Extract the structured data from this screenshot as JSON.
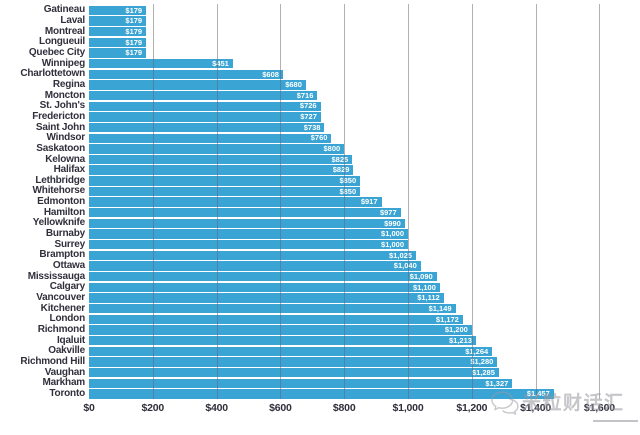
{
  "chart_data": {
    "type": "bar",
    "orientation": "horizontal",
    "title": "",
    "xlabel": "",
    "ylabel": "",
    "xlim": [
      0,
      1700
    ],
    "grid": true,
    "bar_color": "#3AA4D4",
    "value_label_color": "#FFFFFF",
    "axis_label_color": "#30303C",
    "gridline_color": "#64646C",
    "categories": [
      "Gatineau",
      "Laval",
      "Montreal",
      "Longueuil",
      "Quebec City",
      "Winnipeg",
      "Charlottetown",
      "Regina",
      "Moncton",
      "St. John's",
      "Fredericton",
      "Saint John",
      "Windsor",
      "Saskatoon",
      "Kelowna",
      "Halifax",
      "Lethbridge",
      "Whitehorse",
      "Edmonton",
      "Hamilton",
      "Yellowknife",
      "Burnaby",
      "Surrey",
      "Brampton",
      "Ottawa",
      "Mississauga",
      "Calgary",
      "Vancouver",
      "Kitchener",
      "London",
      "Richmond",
      "Iqaluit",
      "Oakville",
      "Richmond Hill",
      "Vaughan",
      "Markham",
      "Toronto"
    ],
    "values": [
      179,
      179,
      179,
      179,
      179,
      451,
      608,
      680,
      716,
      726,
      727,
      738,
      760,
      800,
      825,
      829,
      850,
      850,
      917,
      977,
      990,
      1000,
      1000,
      1025,
      1040,
      1090,
      1100,
      1112,
      1149,
      1172,
      1200,
      1213,
      1264,
      1280,
      1285,
      1327,
      1457
    ],
    "value_labels": [
      "$179",
      "$179",
      "$179",
      "$179",
      "$179",
      "$451",
      "$608",
      "$680",
      "$716",
      "$726",
      "$727",
      "$738",
      "$760",
      "$800",
      "$825",
      "$829",
      "$850",
      "$850",
      "$917",
      "$977",
      "$990",
      "$1,000",
      "$1,000",
      "$1,025",
      "$1,040",
      "$1,090",
      "$1,100",
      "$1,112",
      "$1,149",
      "$1,172",
      "$1,200",
      "$1,213",
      "$1,264",
      "$1,280",
      "$1,285",
      "$1,327",
      "$1,457"
    ],
    "x_ticks": [
      {
        "value": 0,
        "label": "$0"
      },
      {
        "value": 200,
        "label": "$200"
      },
      {
        "value": 400,
        "label": "$400"
      },
      {
        "value": 600,
        "label": "$600"
      },
      {
        "value": 800,
        "label": "$800"
      },
      {
        "value": 1000,
        "label": "$1,000"
      },
      {
        "value": 1200,
        "label": "$1,200"
      },
      {
        "value": 1400,
        "label": "$1,400"
      },
      {
        "value": 1600,
        "label": "$1,600"
      }
    ]
  },
  "watermark": {
    "icon": "wechat-chat-bubbles-icon",
    "text": "米粒财话汇"
  }
}
